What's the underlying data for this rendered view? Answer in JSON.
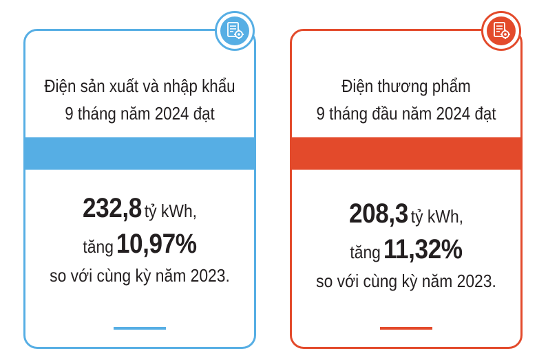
{
  "cards": [
    {
      "theme_color": "#56aee4",
      "icon": "document-gear-icon",
      "header_line1": "Điện sản xuất và nhập khẩu",
      "header_line2": "9 tháng năm 2024 đạt",
      "value": "232,8",
      "unit": "tỷ kWh,",
      "increase_prefix": "tăng",
      "increase_value": "10,97%",
      "comparison": "so với cùng kỳ năm 2023."
    },
    {
      "theme_color": "#e34a2b",
      "icon": "document-gear-icon",
      "header_line1": "Điện thương phẩm",
      "header_line2": "9 tháng đầu năm 2024 đạt",
      "value": "208,3",
      "unit": "tỷ kWh,",
      "increase_prefix": "tăng",
      "increase_value": "11,32%",
      "comparison": "so với cùng kỳ năm 2023."
    }
  ]
}
